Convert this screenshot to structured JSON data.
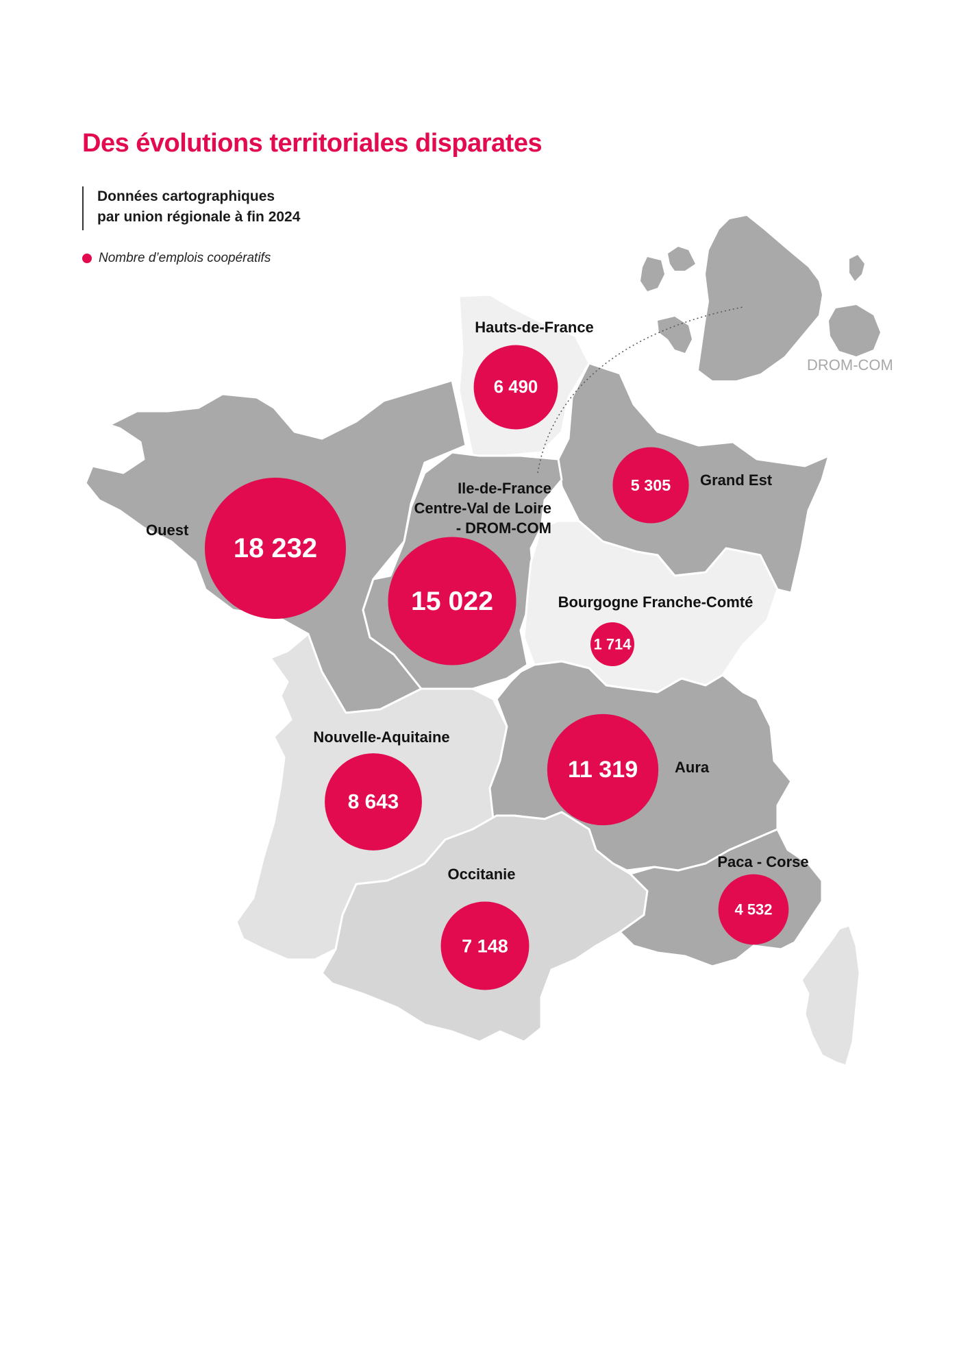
{
  "title": "Des évolutions territoriales disparates",
  "subtitle": [
    "Données cartographiques",
    "par union régionale à fin 2024"
  ],
  "legend": {
    "label": "Nombre d’emplois coopératifs",
    "color": "#e20b4f"
  },
  "colors": {
    "accent": "#e20b4f",
    "region_dark": "#a9a9a9",
    "region_mid": "#cfcfcf",
    "region_light": "#e6e6e6",
    "region_lightest": "#f0f0f0"
  },
  "drom_label": "DROM-COM",
  "regions": [
    {
      "id": "hauts-de-france",
      "label": [
        "Hauts-de-France"
      ],
      "value": 6490,
      "value_label": "6 490"
    },
    {
      "id": "grand-est",
      "label": [
        "Grand Est"
      ],
      "value": 5305,
      "value_label": "5 305"
    },
    {
      "id": "ouest",
      "label": [
        "Ouest"
      ],
      "value": 18232,
      "value_label": "18 232"
    },
    {
      "id": "idf-cvl-drom",
      "label": [
        "Ile-de-France",
        "Centre-Val de Loire",
        "- DROM-COM"
      ],
      "value": 15022,
      "value_label": "15 022"
    },
    {
      "id": "bourgogne-franche-comte",
      "label": [
        "Bourgogne Franche-Comté"
      ],
      "value": 1714,
      "value_label": "1 714"
    },
    {
      "id": "nouvelle-aquitaine",
      "label": [
        "Nouvelle-Aquitaine"
      ],
      "value": 8643,
      "value_label": "8 643"
    },
    {
      "id": "aura",
      "label": [
        "Aura"
      ],
      "value": 11319,
      "value_label": "11 319"
    },
    {
      "id": "occitanie",
      "label": [
        "Occitanie"
      ],
      "value": 7148,
      "value_label": "7 148"
    },
    {
      "id": "paca-corse",
      "label": [
        "Paca - Corse"
      ],
      "value": 4532,
      "value_label": "4 532"
    }
  ]
}
